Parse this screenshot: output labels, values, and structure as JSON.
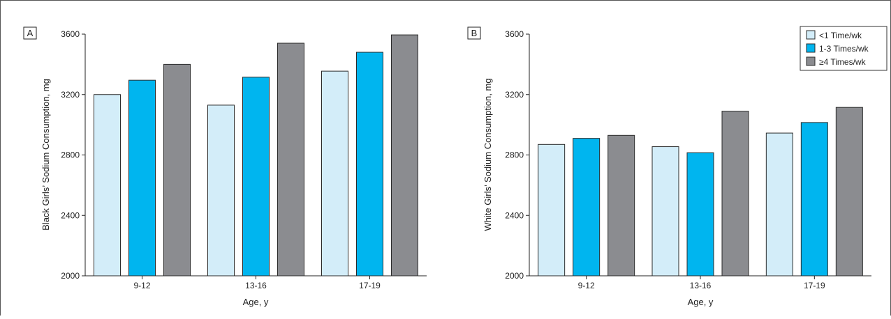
{
  "colors": {
    "lt1": "#d3edf9",
    "mid": "#00b5ef",
    "high": "#8b8c90",
    "stroke": "#2b2b2b",
    "frame": "#555555"
  },
  "legend": {
    "items": [
      {
        "label": "<1 Time/wk",
        "color": "#d3edf9"
      },
      {
        "label": "1-3 Times/wk",
        "color": "#00b5ef"
      },
      {
        "label": "≥4 Times/wk",
        "color": "#8b8c90"
      }
    ]
  },
  "chart_data": [
    {
      "type": "bar",
      "panel_label": "A",
      "categories": [
        "9-12",
        "13-16",
        "17-19"
      ],
      "series": [
        {
          "name": "<1 Time/wk",
          "values": [
            3200,
            3130,
            3355
          ]
        },
        {
          "name": "1-3 Times/wk",
          "values": [
            3295,
            3315,
            3480
          ]
        },
        {
          "name": "≥4 Times/wk",
          "values": [
            3400,
            3540,
            3595
          ]
        }
      ],
      "xlabel": "Age, y",
      "ylabel": "Black Girls’ Sodium Consumption, mg",
      "ylim": [
        2000,
        3600
      ],
      "yticks": [
        2000,
        2400,
        2800,
        3200,
        3600
      ],
      "legend": "none",
      "grid": false
    },
    {
      "type": "bar",
      "panel_label": "B",
      "categories": [
        "9-12",
        "13-16",
        "17-19"
      ],
      "series": [
        {
          "name": "<1 Time/wk",
          "values": [
            2870,
            2855,
            2945
          ]
        },
        {
          "name": "1-3 Times/wk",
          "values": [
            2910,
            2815,
            3015
          ]
        },
        {
          "name": "≥4 Times/wk",
          "values": [
            2930,
            3090,
            3115
          ]
        }
      ],
      "xlabel": "Age, y",
      "ylabel": "White Girls’ Sodium Consumption, mg",
      "ylim": [
        2000,
        3600
      ],
      "yticks": [
        2000,
        2400,
        2800,
        3200,
        3600
      ],
      "legend": "top-right",
      "grid": false
    }
  ]
}
